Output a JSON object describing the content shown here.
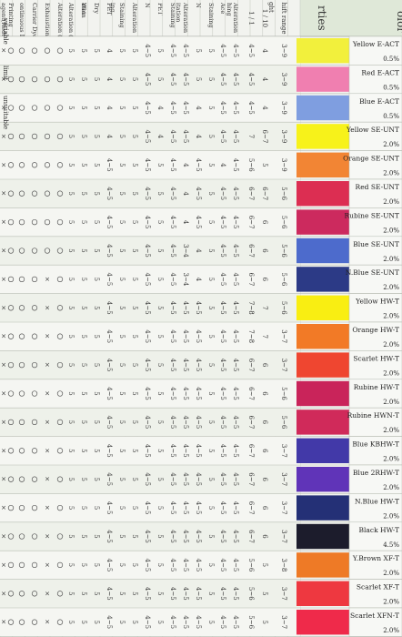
{
  "header": {
    "title": "olor & Shade",
    "properties_label": "rties",
    "light_label": "ght",
    "shift_range_label": "hift range",
    "ratio_1_10": "1 / 10",
    "ratio_1_1": "1 / 1"
  },
  "legend": {
    "circle_dot": "variable",
    "circle": "limit",
    "cross": "unsuitable"
  },
  "group_labels": [
    "hing",
    "itation",
    "ing",
    "ation"
  ],
  "columns": [
    "Alteration",
    "Ace",
    "Staining",
    "N",
    "Alteration",
    "Staining",
    "PET",
    "N",
    "Alteration",
    "Staining",
    "PET",
    "Dry",
    "Wet",
    "Alteration (Acid)",
    "Alteration (Alkali)",
    "Exhaustion",
    "Carrier Dyeing",
    "ontinuous Dyeing",
    "Printing",
    "agent(Reduction agent)"
  ],
  "colors": [
    {
      "name": "Yellow E-ACT",
      "pct": "0.5%",
      "hex": "#f2f03c"
    },
    {
      "name": "Red E-ACT",
      "pct": "0.5%",
      "hex": "#f07fb0"
    },
    {
      "name": "Blue E-ACT",
      "pct": "0.5%",
      "hex": "#7f9ee0"
    },
    {
      "name": "Yellow SE-UNT",
      "pct": "2.0%",
      "hex": "#f7f21a"
    },
    {
      "name": "Orange SE-UNT",
      "pct": "2.0%",
      "hex": "#f28534"
    },
    {
      "name": "Red SE-UNT",
      "pct": "2.0%",
      "hex": "#dc2e52"
    },
    {
      "name": "Rubine SE-UNT",
      "pct": "2.0%",
      "hex": "#cc2a5e"
    },
    {
      "name": "Blue SE-UNT",
      "pct": "2.0%",
      "hex": "#4d6bcc"
    },
    {
      "name": "N.Blue SE-UNT",
      "pct": "2.0%",
      "hex": "#2c3a86"
    },
    {
      "name": "Yellow HW-T",
      "pct": "2.0%",
      "hex": "#f9ee12"
    },
    {
      "name": "Orange HW-T",
      "pct": "2.0%",
      "hex": "#f27a26"
    },
    {
      "name": "Scarlet HW-T",
      "pct": "2.0%",
      "hex": "#ef4630"
    },
    {
      "name": "Rubine HW-T",
      "pct": "2.0%",
      "hex": "#c9245a"
    },
    {
      "name": "Rubine HWN-T",
      "pct": "2.0%",
      "hex": "#d02a5a"
    },
    {
      "name": "Blue KBHW-T",
      "pct": "2.0%",
      "hex": "#4239a8"
    },
    {
      "name": "Blue 2RHW-T",
      "pct": "2.0%",
      "hex": "#6034b8"
    },
    {
      "name": "N.Blue HW-T",
      "pct": "2.0%",
      "hex": "#243076"
    },
    {
      "name": "Black HW-T",
      "pct": "4.5%",
      "hex": "#1c1c2c"
    },
    {
      "name": "Y.Brown XF-T",
      "pct": "2.0%",
      "hex": "#ee7a26"
    },
    {
      "name": "Scarlet XF-T",
      "pct": "2.0%",
      "hex": "#ee3840"
    },
    {
      "name": "Scarlet XFN-T",
      "pct": "2.0%",
      "hex": "#ef2a4a"
    }
  ],
  "rows": [
    {
      "shift": "3~9",
      "r110": "4",
      "r11": "4~5",
      "v": [
        "4~5",
        "4~5",
        "5",
        "5",
        "4~5",
        "4~5",
        "5",
        "4~5",
        "5",
        "5",
        "4",
        "5",
        "5",
        "5"
      ],
      "s": [
        "o",
        "o",
        "o",
        "o",
        "o",
        "x"
      ]
    },
    {
      "shift": "3~9",
      "r110": "4",
      "r11": "4~5",
      "v": [
        "4~5",
        "4~5",
        "5",
        "5",
        "4~5",
        "4~5",
        "5",
        "4~5",
        "5",
        "5",
        "4",
        "5",
        "5",
        "5"
      ],
      "s": [
        "o",
        "o",
        "o",
        "o",
        "o",
        "x"
      ]
    },
    {
      "shift": "3~9",
      "r110": "4",
      "r11": "4~5",
      "v": [
        "4~5",
        "4~5",
        "5",
        "4",
        "4~5",
        "4~5",
        "4",
        "4~5",
        "5",
        "5",
        "4",
        "5",
        "5",
        "5"
      ],
      "s": [
        "o",
        "o",
        "o",
        "o",
        "o",
        "x"
      ]
    },
    {
      "shift": "3~9",
      "r110": "6~7",
      "r11": "7",
      "v": [
        "4~5",
        "4~5",
        "5",
        "4",
        "4~5",
        "4~5",
        "4",
        "4~5",
        "5",
        "5",
        "4",
        "5",
        "5",
        "5"
      ],
      "s": [
        "o",
        "o",
        "o",
        "o",
        "o",
        "x"
      ]
    },
    {
      "shift": "3~9",
      "r110": "5",
      "r11": "5~6",
      "v": [
        "4~5",
        "4",
        "5",
        "4~5",
        "4",
        "4~5",
        "5",
        "4~5",
        "5",
        "5",
        "4~5",
        "5",
        "5",
        "5"
      ],
      "s": [
        "o",
        "o",
        "o",
        "o",
        "o",
        "x"
      ]
    },
    {
      "shift": "5~6",
      "r110": "6~7",
      "r11": "6~7",
      "v": [
        "4~5",
        "4~5",
        "5",
        "4~5",
        "4",
        "4~5",
        "5",
        "4~5",
        "5",
        "5",
        "4~5",
        "5",
        "5",
        "5"
      ],
      "s": [
        "o",
        "o",
        "o",
        "o",
        "o",
        "x"
      ]
    },
    {
      "shift": "5~6",
      "r110": "6",
      "r11": "6~7",
      "v": [
        "4~5",
        "4~5",
        "5",
        "4~5",
        "4",
        "4~5",
        "5",
        "4~5",
        "5",
        "5",
        "4~5",
        "5",
        "5",
        "5"
      ],
      "s": [
        "o",
        "o",
        "o",
        "o",
        "o",
        "x"
      ]
    },
    {
      "shift": "5~6",
      "r110": "6",
      "r11": "6~7",
      "v": [
        "4~5",
        "4~5",
        "5",
        "4",
        "3~4",
        "4~5",
        "5",
        "4~5",
        "5",
        "5",
        "4~5",
        "5",
        "5",
        "5"
      ],
      "s": [
        "o",
        "o",
        "o",
        "o",
        "o",
        "x"
      ]
    },
    {
      "shift": "5~6",
      "r110": "6",
      "r11": "6~7",
      "v": [
        "4~5",
        "4~5",
        "5",
        "4",
        "3~4",
        "4~5",
        "5",
        "4~5",
        "5",
        "5",
        "4~5",
        "5",
        "5",
        "5"
      ],
      "s": [
        "o",
        "x",
        "o",
        "o",
        "o",
        "x"
      ]
    },
    {
      "shift": "5~6",
      "r110": "7",
      "r11": "7~8",
      "v": [
        "4~5",
        "4~5",
        "5",
        "4~5",
        "4~5",
        "4~5",
        "5",
        "4~5",
        "5",
        "5",
        "4~5",
        "5",
        "5",
        "5"
      ],
      "s": [
        "o",
        "x",
        "o",
        "o",
        "o",
        "x"
      ]
    },
    {
      "shift": "3~7",
      "r110": "7",
      "r11": "7~8",
      "v": [
        "4~5",
        "4~5",
        "5",
        "4~5",
        "4~5",
        "4~5",
        "5",
        "4~5",
        "5",
        "5",
        "4~5",
        "5",
        "5",
        "5"
      ],
      "s": [
        "o",
        "x",
        "o",
        "o",
        "o",
        "x"
      ]
    },
    {
      "shift": "3~7",
      "r110": "6",
      "r11": "6~7",
      "v": [
        "4~5",
        "4~5",
        "5",
        "4~5",
        "4~5",
        "4~5",
        "5",
        "4~5",
        "5",
        "5",
        "4~5",
        "5",
        "5",
        "5"
      ],
      "s": [
        "o",
        "x",
        "o",
        "o",
        "o",
        "x"
      ]
    },
    {
      "shift": "5~6",
      "r110": "6",
      "r11": "6~7",
      "v": [
        "4~5",
        "4~5",
        "5",
        "4~5",
        "4~5",
        "4~5",
        "5",
        "4~5",
        "5",
        "5",
        "4~5",
        "5",
        "5",
        "5"
      ],
      "s": [
        "o",
        "x",
        "o",
        "o",
        "o",
        "x"
      ]
    },
    {
      "shift": "5~6",
      "r110": "6",
      "r11": "6~7",
      "v": [
        "4~5",
        "4~5",
        "5",
        "4~5",
        "4~5",
        "4~5",
        "5",
        "4~5",
        "5",
        "5",
        "4~5",
        "5",
        "5",
        "5"
      ],
      "s": [
        "o",
        "x",
        "o",
        "o",
        "o",
        "x"
      ]
    },
    {
      "shift": "3~7",
      "r110": "6",
      "r11": "6~7",
      "v": [
        "4~5",
        "4~5",
        "5",
        "4~5",
        "4~5",
        "4~5",
        "5",
        "4~5",
        "5",
        "5",
        "4~5",
        "5",
        "5",
        "5"
      ],
      "s": [
        "o",
        "x",
        "o",
        "o",
        "o",
        "x"
      ]
    },
    {
      "shift": "3~7",
      "r110": "6",
      "r11": "6~7",
      "v": [
        "4~5",
        "4~5",
        "5",
        "4~5",
        "4~5",
        "4~5",
        "5",
        "4~5",
        "5",
        "5",
        "4~5",
        "5",
        "5",
        "5"
      ],
      "s": [
        "o",
        "x",
        "o",
        "o",
        "o",
        "x"
      ]
    },
    {
      "shift": "3~7",
      "r110": "6",
      "r11": "6~7",
      "v": [
        "4~5",
        "4~5",
        "5",
        "4~5",
        "4~5",
        "4~5",
        "5",
        "4~5",
        "5",
        "5",
        "4~5",
        "5",
        "5",
        "5"
      ],
      "s": [
        "o",
        "x",
        "o",
        "o",
        "o",
        "x"
      ]
    },
    {
      "shift": "3~7",
      "r110": "6",
      "r11": "6~7",
      "v": [
        "4~5",
        "4~5",
        "5",
        "4~5",
        "4~5",
        "4~5",
        "5",
        "4~5",
        "5",
        "5",
        "4~5",
        "5",
        "5",
        "5"
      ],
      "s": [
        "o",
        "x",
        "o",
        "o",
        "o",
        "x"
      ]
    },
    {
      "shift": "3~8",
      "r110": "5",
      "r11": "5~6",
      "v": [
        "4~5",
        "4~5",
        "5",
        "4~5",
        "4~5",
        "4~5",
        "5",
        "4~5",
        "5",
        "5",
        "4~5",
        "5",
        "5",
        "5"
      ],
      "s": [
        "o",
        "x",
        "o",
        "o",
        "o",
        "x"
      ]
    },
    {
      "shift": "3~7",
      "r110": "5",
      "r11": "5~6",
      "v": [
        "4~5",
        "4~5",
        "5",
        "4~5",
        "4~5",
        "4~5",
        "5",
        "4~5",
        "5",
        "5",
        "4~5",
        "5",
        "5",
        "5"
      ],
      "s": [
        "o",
        "x",
        "o",
        "o",
        "o",
        "x"
      ]
    },
    {
      "shift": "3~7",
      "r110": "5",
      "r11": "5~6",
      "v": [
        "4~5",
        "4~5",
        "5",
        "4~5",
        "4~5",
        "4~5",
        "5",
        "4~5",
        "5",
        "5",
        "4~5",
        "5",
        "5",
        "5"
      ],
      "s": [
        "o",
        "x",
        "o",
        "o",
        "o",
        "x"
      ]
    }
  ]
}
